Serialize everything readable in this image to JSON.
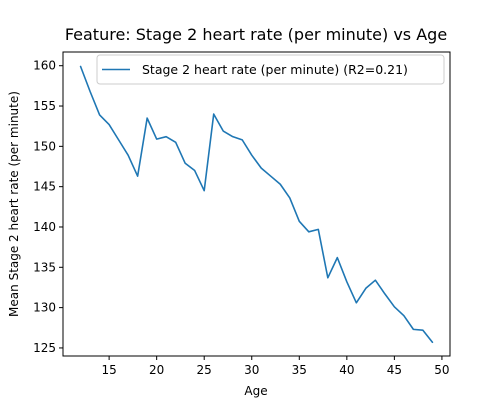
{
  "chart_data": {
    "type": "line",
    "title": "Feature: Stage 2 heart rate (per minute) vs Age",
    "xlabel": "Age",
    "ylabel": "Mean Stage 2 heart rate (per minute)",
    "xlim": [
      10.15,
      50.85
    ],
    "ylim": [
      124.0,
      161.7
    ],
    "xticks": [
      15,
      20,
      25,
      30,
      35,
      40,
      45,
      50
    ],
    "yticks": [
      125,
      130,
      135,
      140,
      145,
      150,
      155,
      160
    ],
    "grid": false,
    "legend": {
      "position": "top-right",
      "entries": [
        "Stage 2 heart rate (per minute) (R2=0.21)"
      ]
    },
    "series": [
      {
        "name": "Stage 2 heart rate (per minute) (R2=0.21)",
        "color": "#1f77b4",
        "x": [
          12,
          13,
          14,
          15,
          16,
          17,
          18,
          19,
          20,
          21,
          22,
          23,
          24,
          25,
          26,
          27,
          28,
          29,
          30,
          31,
          32,
          33,
          34,
          35,
          36,
          37,
          38,
          39,
          40,
          41,
          42,
          43,
          44,
          45,
          46,
          47,
          48,
          49
        ],
        "y": [
          159.9,
          156.8,
          153.9,
          152.7,
          150.8,
          148.9,
          146.3,
          153.5,
          150.9,
          151.2,
          150.5,
          147.9,
          147.0,
          144.5,
          154.0,
          151.9,
          151.2,
          150.8,
          148.9,
          147.3,
          146.3,
          145.3,
          143.6,
          140.7,
          139.4,
          139.7,
          133.7,
          136.2,
          133.2,
          130.6,
          132.4,
          133.4,
          131.7,
          130.1,
          129.0,
          127.3,
          127.2,
          125.7
        ]
      }
    ]
  }
}
